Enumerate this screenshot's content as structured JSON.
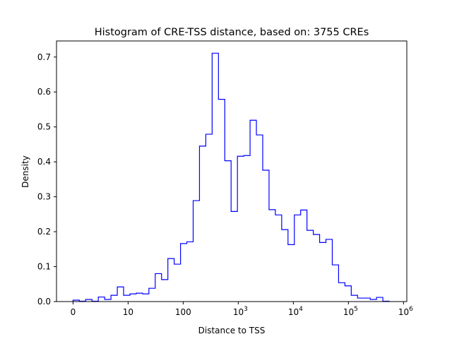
{
  "chart_data": {
    "type": "histogram",
    "title": "Histogram of CRE-TSS distance, based on: 3755 CREs",
    "xlabel": "Distance to TSS",
    "ylabel": "Density",
    "x_scale": "log10(x+1)",
    "xlim_log10": [
      -0.3,
      6.06
    ],
    "ylim": [
      0,
      0.746
    ],
    "grid": false,
    "bin_range_log10": [
      0,
      5.74
    ],
    "bins": 50,
    "densities": [
      0.004,
      0.001,
      0.006,
      0.001,
      0.013,
      0.006,
      0.018,
      0.042,
      0.018,
      0.022,
      0.024,
      0.022,
      0.038,
      0.08,
      0.063,
      0.123,
      0.107,
      0.166,
      0.171,
      0.289,
      0.445,
      0.479,
      0.711,
      0.579,
      0.403,
      0.258,
      0.416,
      0.418,
      0.519,
      0.477,
      0.376,
      0.263,
      0.248,
      0.206,
      0.163,
      0.248,
      0.262,
      0.204,
      0.192,
      0.169,
      0.178,
      0.105,
      0.054,
      0.045,
      0.018,
      0.01,
      0.01,
      0.006,
      0.012,
      0.001
    ],
    "x_ticks": [
      {
        "pos": 0,
        "label": "0"
      },
      {
        "pos": 1,
        "label": "10"
      },
      {
        "pos": 2,
        "label": "100"
      },
      {
        "pos": 3,
        "base": "10",
        "exp": "3"
      },
      {
        "pos": 4,
        "base": "10",
        "exp": "4"
      },
      {
        "pos": 5,
        "base": "10",
        "exp": "5"
      },
      {
        "pos": 6,
        "base": "10",
        "exp": "6"
      }
    ],
    "y_ticks": [
      {
        "value": 0.0,
        "label": "0.0"
      },
      {
        "value": 0.1,
        "label": "0.1"
      },
      {
        "value": 0.2,
        "label": "0.2"
      },
      {
        "value": 0.3,
        "label": "0.3"
      },
      {
        "value": 0.4,
        "label": "0.4"
      },
      {
        "value": 0.5,
        "label": "0.5"
      },
      {
        "value": 0.6,
        "label": "0.6"
      },
      {
        "value": 0.7,
        "label": "0.7"
      }
    ],
    "line_color": "#0000ff"
  }
}
